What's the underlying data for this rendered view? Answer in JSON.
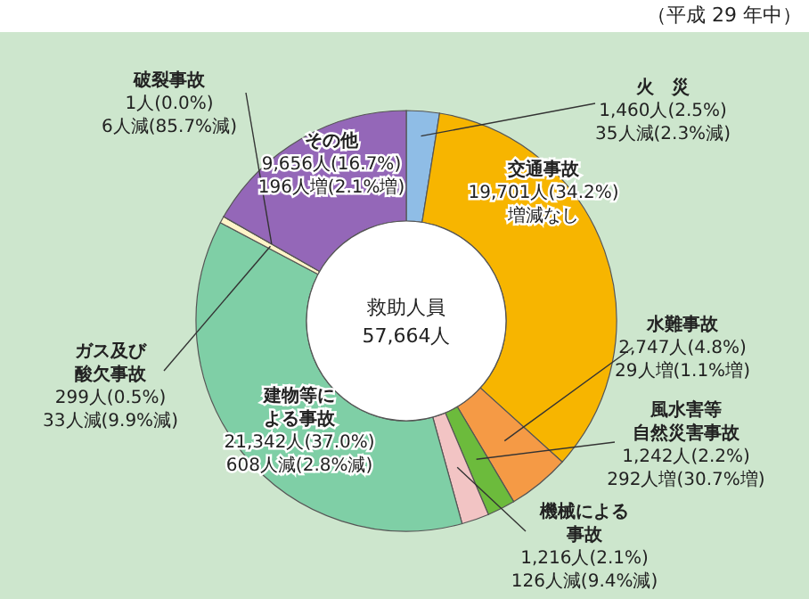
{
  "chart_data": {
    "type": "donut",
    "categories": [
      "火　災",
      "交通事故",
      "水難事故",
      "風水害等自然災害事故",
      "機械による事故",
      "建物等による事故",
      "ガス及び酸欠事故",
      "破裂事故",
      "その他"
    ],
    "values": [
      1460,
      19701,
      2747,
      1242,
      1216,
      21342,
      299,
      1,
      9656
    ],
    "value_labels": [
      "1,460人(2.5%)\n35人減(2.3%減)",
      "19,701人(34.2%)\n増減なし",
      "2,747人(4.8%)\n29人増(1.1%増)",
      "1,242人(2.2%)\n292人増(30.7%増)",
      "1,216人(2.1%)\n126人減(9.4%減)",
      "21,342人(37.0%)\n608人減(2.8%減)",
      "299人(0.5%)\n33人減(9.9%減)",
      "1人(0.0%)\n6人減(85.7%減)",
      "9,656人(16.7%)\n196人増(2.1%増)"
    ],
    "colors": [
      "#8fbde6",
      "#f7b500",
      "#f59a45",
      "#6cbb3c",
      "#f2c4c4",
      "#7fcfa6",
      "#fff4c8",
      "#b0a0c8",
      "#9467b8"
    ],
    "annotations": [
      "（平成 29 年中）",
      "救助人員\n57,664人"
    ]
  }
}
